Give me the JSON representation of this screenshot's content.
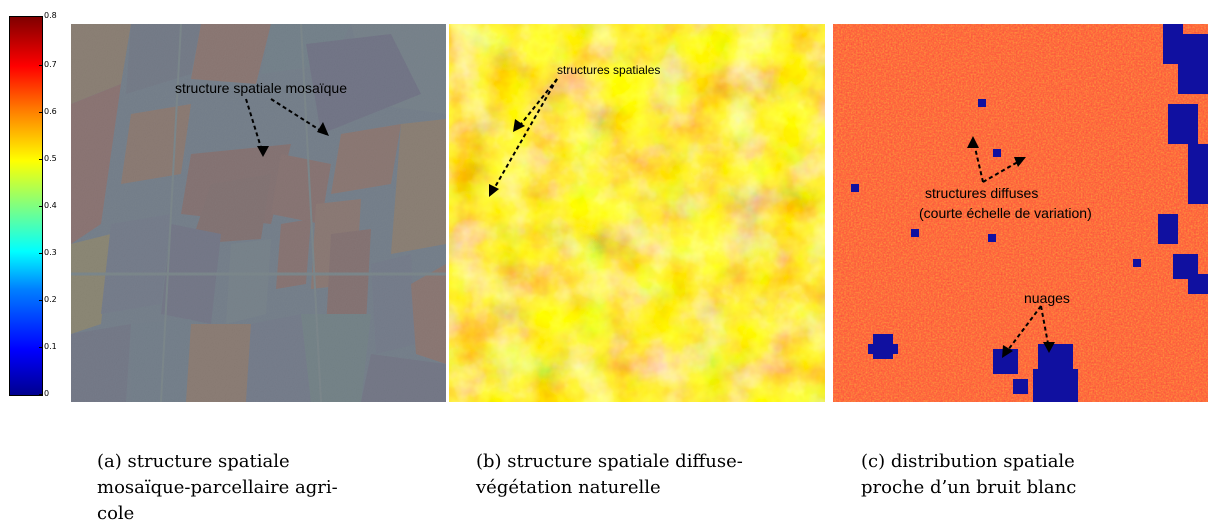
{
  "colorbar": {
    "ticks": [
      "0",
      "0.1",
      "0.2",
      "0.3",
      "0.4",
      "0.5",
      "0.6",
      "0.7",
      "0.8"
    ]
  },
  "panels": [
    {
      "annotations": [
        "structure spatiale mosaïque"
      ],
      "caption_lines": [
        "(a)       structure       spatiale",
        "mosaïque-parcellaire       agri-",
        "cole"
      ]
    },
    {
      "annotations": [
        "structures spatiales"
      ],
      "caption_lines": [
        "(b) structure spatiale diffuse-",
        "végétation naturelle"
      ]
    },
    {
      "annotations": [
        "structures diffuses",
        "(courte échelle de variation)",
        "nuages"
      ],
      "caption_lines": [
        "(c)       distribution       spatiale",
        "proche d’un bruit blanc"
      ]
    }
  ]
}
